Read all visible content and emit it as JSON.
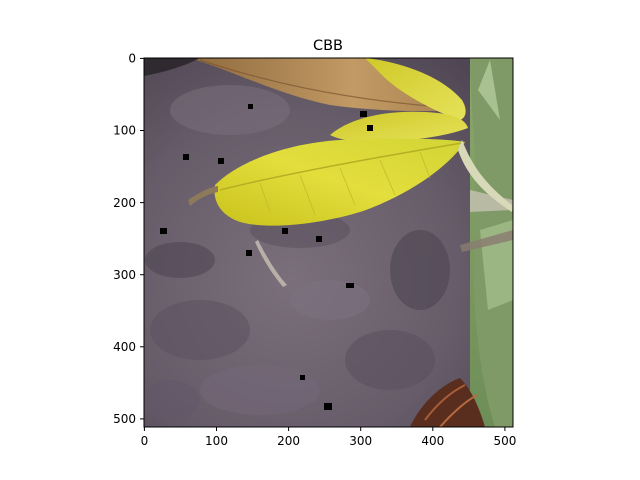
{
  "figure": {
    "title": "CBB",
    "image_description_tags": [
      "soil",
      "yellow-leaf",
      "dry-leaf",
      "grass"
    ],
    "x_axis": {
      "ticks": [
        "0",
        "100",
        "200",
        "300",
        "400",
        "500"
      ],
      "range": [
        0,
        512
      ]
    },
    "y_axis": {
      "ticks": [
        "0",
        "100",
        "200",
        "300",
        "400",
        "500"
      ],
      "range": [
        0,
        512
      ]
    }
  },
  "colors": {
    "soil": "#6f6470",
    "soil_dark": "#4a4150",
    "leaf_yellow": "#d8d22a",
    "leaf_dry": "#b08a58",
    "grass": "#7aa060",
    "marker": "#000000"
  }
}
